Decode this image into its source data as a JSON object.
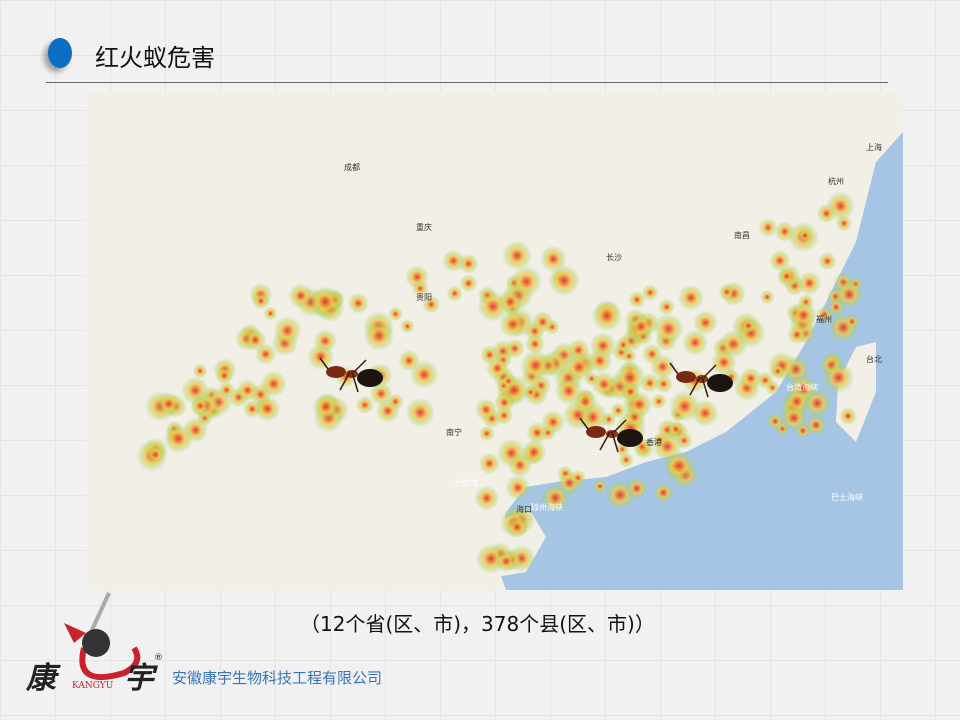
{
  "slide": {
    "title": "红火蚁危害",
    "caption": "（12个省(区、市)，378个县(区、市)）",
    "company": "安徽康宇生物科技工程有限公司",
    "accent_color": "#0a6fc2"
  },
  "logo": {
    "text_left": "康",
    "text_right": "宇",
    "latin": "KANGYU",
    "mark": "®"
  },
  "map": {
    "land_color": "#f2efe6",
    "sea_color": "#a6c5e4",
    "heat_colors": [
      "#7fd36a",
      "#f2c94c",
      "#e0302a"
    ],
    "city_labels": [
      "成都",
      "重庆",
      "贵阳",
      "南宁",
      "南昌",
      "杭州",
      "上海",
      "台北",
      "香港",
      "海口",
      "长沙",
      "福州"
    ],
    "sea_labels": [
      "台湾海峡",
      "巴士海峡",
      "北部湾",
      "琼州海峡"
    ]
  }
}
